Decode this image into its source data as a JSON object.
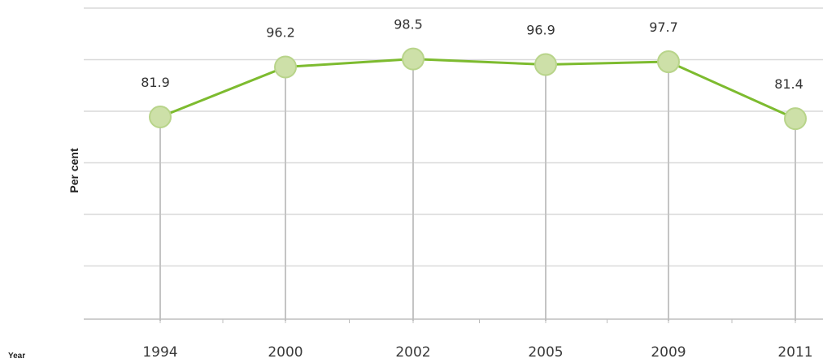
{
  "chart_data": {
    "type": "line",
    "categories": [
      "1994",
      "2000",
      "2002",
      "2005",
      "2009",
      "2011"
    ],
    "series": [
      {
        "values": [
          81.9,
          96.2,
          98.5,
          96.9,
          97.7,
          81.4
        ],
        "color": "#7dbb2f",
        "marker_color": "#cde0a8"
      }
    ],
    "data_labels": [
      "81.9",
      "96.2",
      "98.5",
      "96.9",
      "97.7",
      "81.4"
    ],
    "ylabel": "Per cent",
    "xlabel": "Year",
    "grid": true,
    "drop_lines": true,
    "gridline_color": "#d9d9d9",
    "drop_line_color": "#c4c4c4"
  }
}
